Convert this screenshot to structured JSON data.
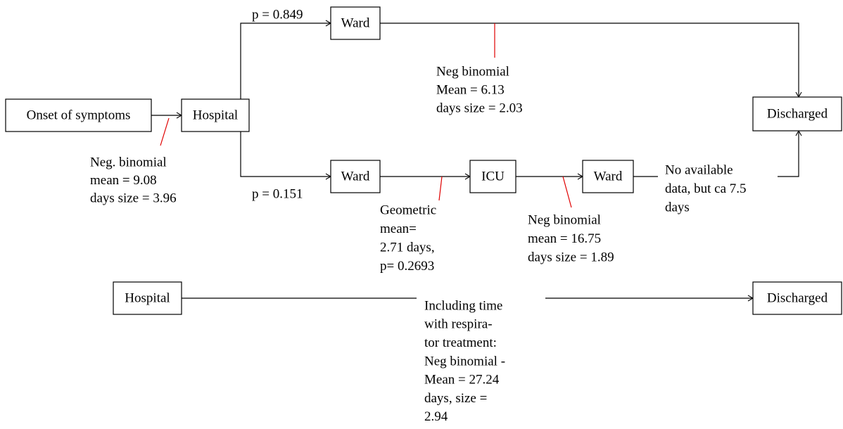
{
  "nodes": [
    "Onset of symptoms",
    "Hospital",
    "Ward",
    "Ward",
    "ICU",
    "Ward",
    "Discharged",
    "Hospital",
    "Discharged"
  ],
  "edge_labels": [
    "p = 0.849",
    "p = 0.151"
  ],
  "annotations": [
    {
      "lines": [
        "Neg. binomial",
        "mean = 9.08",
        "days size = 3.96"
      ]
    },
    {
      "lines": [
        "Neg binomial",
        "Mean = 6.13",
        "days size = 2.03"
      ]
    },
    {
      "lines": [
        "Geometric",
        "mean=",
        "2.71 days,",
        "p= 0.2693"
      ]
    },
    {
      "lines": [
        "Neg binomial",
        "mean = 16.75",
        "days size = 1.89"
      ]
    },
    {
      "lines": [
        "No available",
        "data, but ca 7.5",
        "days"
      ]
    },
    {
      "lines": [
        "Including time",
        "with respira-",
        "tor treatment:",
        "Neg binomial -",
        "Mean = 27.24",
        "days, size =",
        "2.94"
      ]
    }
  ]
}
